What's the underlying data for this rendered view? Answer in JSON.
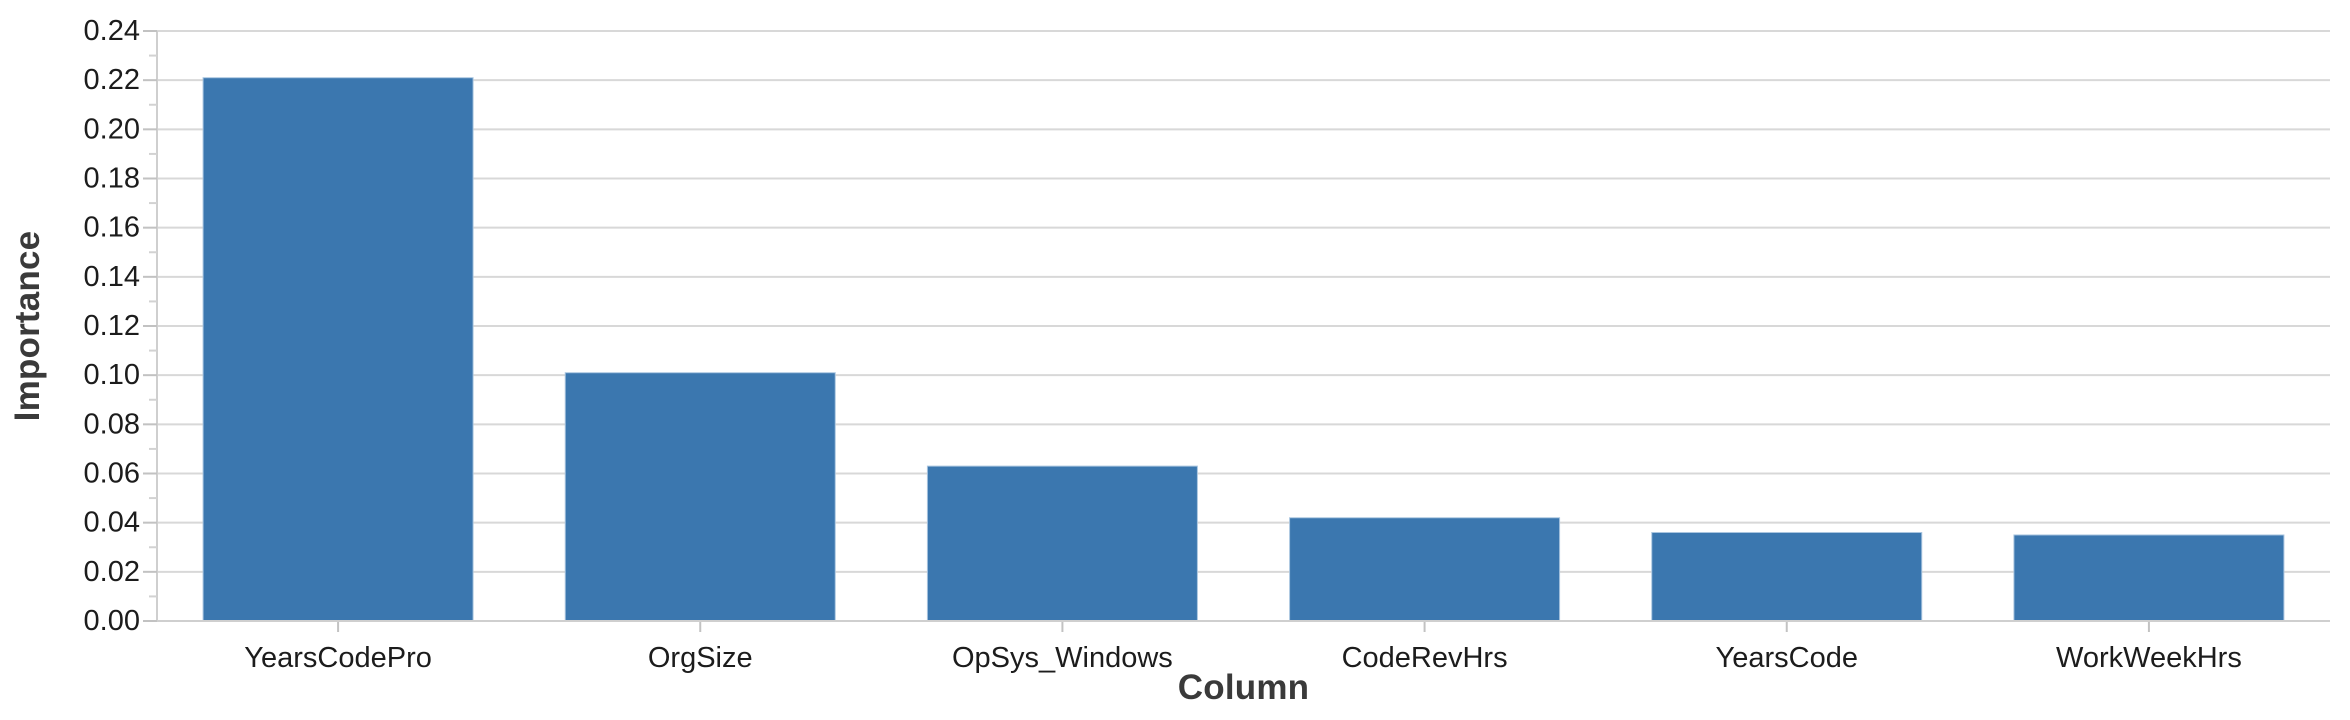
{
  "chart_data": {
    "type": "bar",
    "title": "",
    "categories": [
      "YearsCodePro",
      "OrgSize",
      "OpSys_Windows",
      "CodeRevHrs",
      "YearsCode",
      "WorkWeekHrs"
    ],
    "values": [
      0.221,
      0.101,
      0.063,
      0.042,
      0.036,
      0.035
    ],
    "xlabel": "Column",
    "ylabel": "Importance",
    "ylim": [
      0.0,
      0.24
    ],
    "ytick_step": 0.02,
    "ytick_minor_step": 0.01,
    "ytick_labels": [
      "0.00",
      "0.02",
      "0.04",
      "0.06",
      "0.08",
      "0.10",
      "0.12",
      "0.14",
      "0.16",
      "0.18",
      "0.20",
      "0.22",
      "0.24"
    ],
    "grid": true,
    "legend": null,
    "colors": {
      "bar_fill": "#3b77af",
      "bar_edge": "#a9c5df",
      "gridline": "#d8d8d8",
      "axis_line": "#cfcfcf",
      "tick_mark": "#c2c2c2",
      "minor_tick_mark": "#d2d2d2",
      "tick_label": "#1c1c1c",
      "axis_title": "#3a3a3a",
      "background": "#ffffff"
    }
  }
}
